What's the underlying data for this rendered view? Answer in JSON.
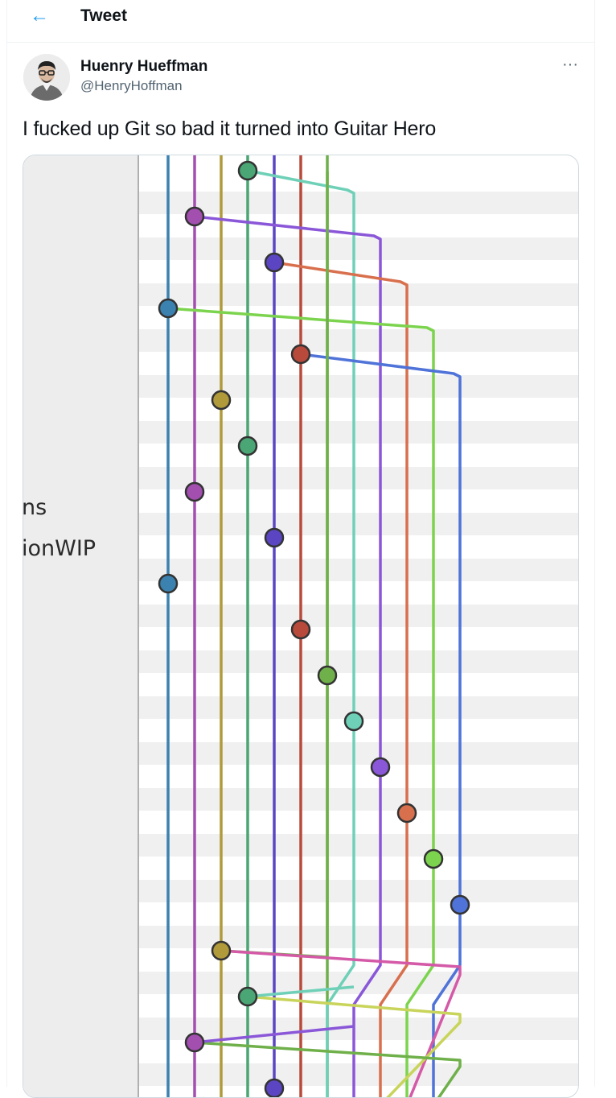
{
  "header": {
    "back_icon": "arrow-left-icon",
    "title": "Tweet"
  },
  "tweet": {
    "author_name": "Huenry Hueffman",
    "author_handle": "@HenryHoffman",
    "more_icon": "more-dots-icon",
    "more_glyph": "···",
    "text": "I fucked up Git so bad it turned into Guitar Hero",
    "accent_color": "#1d9bf0"
  },
  "media": {
    "labels": [
      "ns",
      "ionWIP"
    ],
    "lane_colors": [
      "#3b82b0",
      "#a24fb0",
      "#b09a3a",
      "#4aa675",
      "#5b45c2",
      "#b84a3c",
      "#6fb04a",
      "#6fd0b8",
      "#8a57d8",
      "#d8704e",
      "#7cd44e",
      "#4f73d8"
    ]
  }
}
